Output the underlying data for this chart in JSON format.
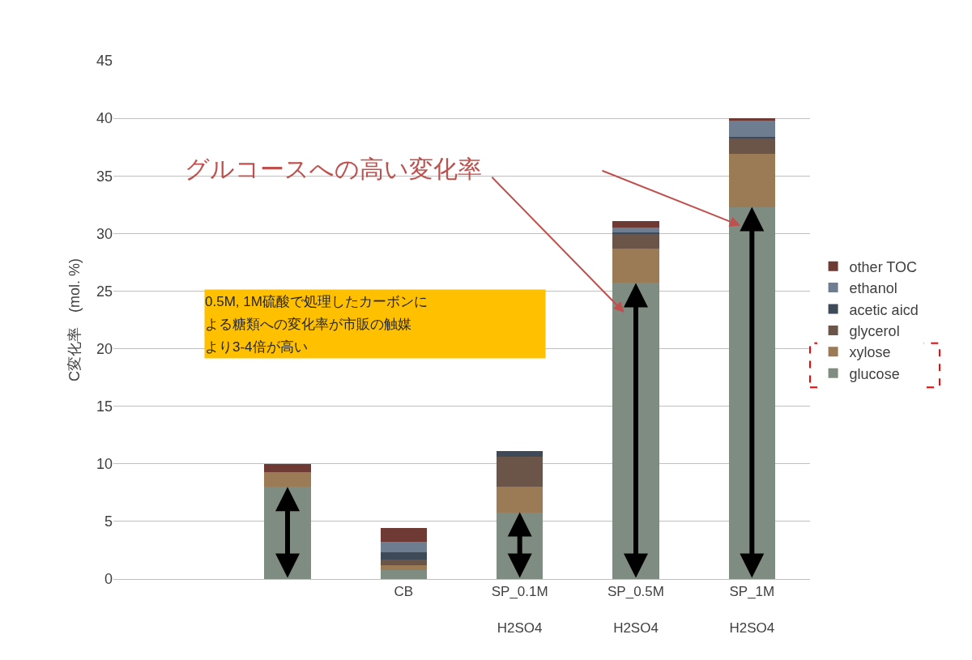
{
  "chart_data": {
    "type": "bar",
    "stacked": true,
    "ylabel": "C変化率　(mol. %)",
    "categories": [
      null,
      null,
      "CB",
      "SP_0.1M\nH2SO4",
      "SP_0.5M\nH2SO4",
      "SP_1M\nH2SO4"
    ],
    "series": [
      {
        "name": "glucose",
        "color": "#7f8c82",
        "values": [
          null,
          8.0,
          0.8,
          5.8,
          25.7,
          32.3
        ]
      },
      {
        "name": "xylose",
        "color": "#9a7b56",
        "values": [
          null,
          1.3,
          0.4,
          2.2,
          3.0,
          4.6
        ]
      },
      {
        "name": "glycerol",
        "color": "#6b5549",
        "values": [
          null,
          0,
          0.5,
          2.6,
          1.3,
          1.4
        ]
      },
      {
        "name": "acetic aicd",
        "color": "#3e4a58",
        "values": [
          null,
          0,
          0.6,
          0.5,
          0.1,
          0.1
        ]
      },
      {
        "name": "ethanol",
        "color": "#6f7d91",
        "values": [
          null,
          0,
          0.9,
          0,
          0.4,
          1.4
        ]
      },
      {
        "name": "other TOC",
        "color": "#6e3a33",
        "values": [
          null,
          0.7,
          1.2,
          0,
          0.6,
          0.2
        ]
      }
    ],
    "ylim": [
      0,
      45
    ],
    "yticks": [
      0,
      5,
      10,
      15,
      20,
      25,
      30,
      35,
      40,
      45
    ],
    "grid": "y",
    "legend": "right",
    "annotations": [
      "グルコースへの高い変化率",
      "0.5M, 1M硫酸で処理したカーボンに",
      "よる糖類への変化率が市販の触媒",
      "より3-4倍が高い"
    ]
  }
}
